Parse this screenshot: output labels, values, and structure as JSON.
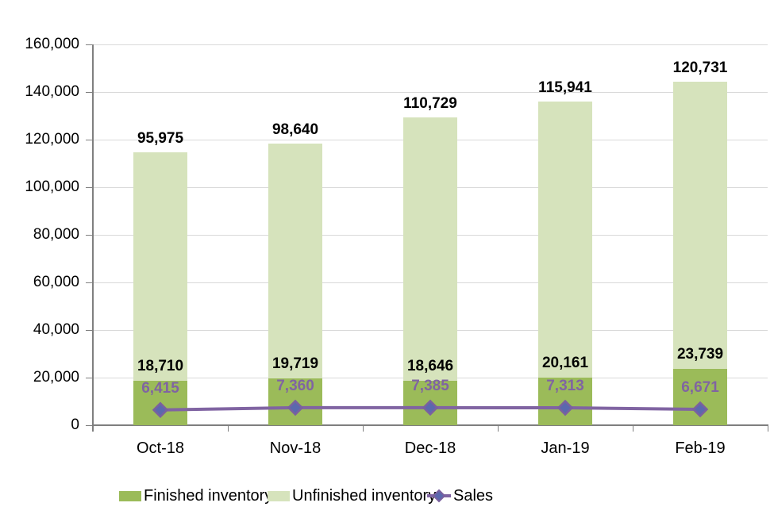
{
  "chart_data": {
    "type": "bar",
    "subtype": "stacked-column-with-line-overlay",
    "title": "",
    "xlabel": "",
    "ylabel": "",
    "categories": [
      "Oct-18",
      "Nov-18",
      "Dec-18",
      "Jan-19",
      "Feb-19"
    ],
    "series": [
      {
        "name": "Finished inventory",
        "type": "bar",
        "stack": "bottom",
        "values": [
          18710,
          19719,
          18646,
          20161,
          23739
        ]
      },
      {
        "name": "Unfinished inventory",
        "type": "bar",
        "stack": "top",
        "values": [
          95975,
          98640,
          110729,
          115941,
          120731
        ]
      },
      {
        "name": "Sales",
        "type": "line",
        "marker": "diamond",
        "values": [
          6415,
          7360,
          7385,
          7313,
          6671
        ]
      }
    ],
    "data_labels": {
      "finished": [
        "18,710",
        "19,719",
        "18,646",
        "20,161",
        "23,739"
      ],
      "unfinished": [
        "95,975",
        "98,640",
        "110,729",
        "115,941",
        "120,731"
      ],
      "sales": [
        "6,415",
        "7,360",
        "7,385",
        "7,313",
        "6,671"
      ]
    },
    "ylim": [
      0,
      160000
    ],
    "ytick_step": 20000,
    "ytick_labels": [
      "0",
      "20,000",
      "40,000",
      "60,000",
      "80,000",
      "100,000",
      "120,000",
      "140,000",
      "160,000"
    ],
    "grid": true,
    "legend_position": "bottom"
  },
  "colors": {
    "background": "#ffffff",
    "finished_bar": "#9bbb59",
    "unfinished_bar": "#d6e3bc",
    "sales_line": "#8064a2",
    "sales_marker_fill": "#5b68ae",
    "sales_marker_stroke": "#7a619f",
    "gridline": "#d9d9d9",
    "axis": "#7f7f7f",
    "label_text": "#000000",
    "sales_label_text": "#8064a2"
  },
  "legend": {
    "items": [
      {
        "label": "Finished inventory",
        "swatch": "filled-rect"
      },
      {
        "label": "Unfinished inventory",
        "swatch": "filled-rect"
      },
      {
        "label": "Sales",
        "swatch": "line-with-diamond"
      }
    ]
  }
}
